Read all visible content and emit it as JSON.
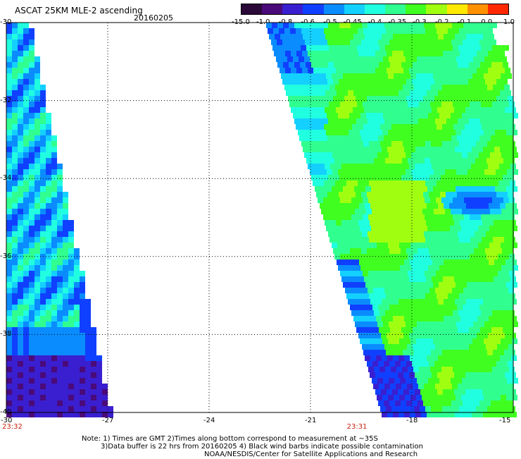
{
  "title": "ASCAT 25KM MLE-2 ascending",
  "date": "20160205",
  "colorbar": {
    "labels": [
      "-15.0",
      "-1.0",
      "-0.8",
      "-0.6",
      "-0.5",
      "-0.45",
      "-0.4",
      "-0.35",
      "-0.3",
      "-0.2",
      "-0.1",
      "0.0",
      "1.0"
    ],
    "colors": [
      "#2a0838",
      "#4a0a7a",
      "#3a1fd0",
      "#1040ff",
      "#0a8cff",
      "#14d0ff",
      "#20ffe0",
      "#30ff90",
      "#40ff20",
      "#a0ff10",
      "#ffe800",
      "#ff9000",
      "#ff2800"
    ]
  },
  "map": {
    "lon_ticks": [
      "-30",
      "-27",
      "-24",
      "-21",
      "-18",
      "-15"
    ],
    "lat_ticks": [
      "-30",
      "-32",
      "-34",
      "-36",
      "-38",
      "-40"
    ],
    "lon_range": [
      -30,
      -15
    ],
    "lat_range": [
      -40,
      -30
    ],
    "times": [
      {
        "label": "23:32",
        "lon": -30
      },
      {
        "label": "23:31",
        "lon": -19.8
      }
    ]
  },
  "notes": {
    "line1": "Note: 1) Times are GMT 2)Times along bottom correspond to measurement at ~35S",
    "line2": "3)Data buffer is 22 hrs from 20160205 4) Black wind barbs indicate possible contamination",
    "line3": "NOAA/NESDIS/Center for Satellite Applications and Research"
  }
}
